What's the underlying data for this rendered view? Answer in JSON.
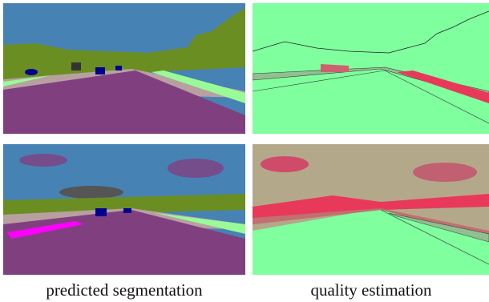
{
  "captions": [
    "predicted segmentation",
    "quality estimation"
  ]
}
